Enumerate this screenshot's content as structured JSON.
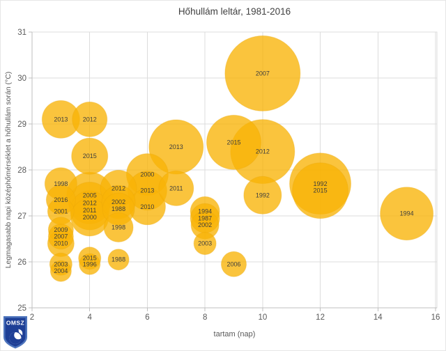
{
  "title": "Hőhullám leltár, 1981-2016",
  "logo": {
    "text": "OMSZ"
  },
  "chart_data": {
    "type": "scatter",
    "subtype": "bubble",
    "title": "Hőhullám leltár, 1981-2016",
    "xlabel": "tartam (nap)",
    "ylabel": "Legmagasabb napi középhőmérséklet a hőhullám során (°C)",
    "xlim": [
      2,
      16
    ],
    "ylim": [
      25,
      31
    ],
    "xticks": [
      2,
      4,
      6,
      8,
      10,
      12,
      14,
      16
    ],
    "yticks": [
      25,
      26,
      27,
      28,
      29,
      30,
      31
    ],
    "grid": true,
    "legend": "none",
    "colors": {
      "bubble": "#F9B307",
      "bubble_opacity": 0.78,
      "bubble_stroke": "#E8A40A",
      "grid": "#DCDCDC",
      "axis": "#BFBFBF",
      "tick_text": "#595959",
      "point_label": "#3D3D3D",
      "title_text": "#404040"
    },
    "points": [
      {
        "label": "2013",
        "x": 3,
        "y": 29.1,
        "r": 27
      },
      {
        "label": "1998",
        "x": 3,
        "y": 27.7,
        "r": 23
      },
      {
        "label": "2016",
        "x": 3,
        "y": 27.35,
        "r": 21
      },
      {
        "label": "2001",
        "x": 3,
        "y": 27.1,
        "r": 19
      },
      {
        "label": "2009",
        "x": 3,
        "y": 26.7,
        "r": 18
      },
      {
        "label": "2007",
        "x": 3,
        "y": 26.55,
        "r": 18
      },
      {
        "label": "2010",
        "x": 3,
        "y": 26.4,
        "r": 19
      },
      {
        "label": "2003",
        "x": 3,
        "y": 25.95,
        "r": 16
      },
      {
        "label": "2004",
        "x": 3,
        "y": 25.8,
        "r": 15
      },
      {
        "label": "2012",
        "x": 4,
        "y": 29.1,
        "r": 25
      },
      {
        "label": "2015",
        "x": 4,
        "y": 28.3,
        "r": 26
      },
      {
        "label": "2005",
        "x": 4,
        "y": 27.45,
        "r": 33
      },
      {
        "label": "2012",
        "x": 4,
        "y": 27.28,
        "r": 30
      },
      {
        "label": "2011",
        "x": 4,
        "y": 27.12,
        "r": 28
      },
      {
        "label": "2000",
        "x": 4,
        "y": 26.97,
        "r": 27
      },
      {
        "label": "2015",
        "x": 4,
        "y": 26.08,
        "r": 16
      },
      {
        "label": "1996",
        "x": 4,
        "y": 25.95,
        "r": 15
      },
      {
        "label": "2012",
        "x": 5,
        "y": 27.6,
        "r": 26
      },
      {
        "label": "2002",
        "x": 5,
        "y": 27.3,
        "r": 24
      },
      {
        "label": "1988",
        "x": 5,
        "y": 27.15,
        "r": 23
      },
      {
        "label": "1998",
        "x": 5,
        "y": 26.75,
        "r": 21
      },
      {
        "label": "1988",
        "x": 5,
        "y": 26.05,
        "r": 15
      },
      {
        "label": "2000",
        "x": 6,
        "y": 27.9,
        "r": 30
      },
      {
        "label": "2013",
        "x": 6,
        "y": 27.55,
        "r": 28
      },
      {
        "label": "2010",
        "x": 6,
        "y": 27.2,
        "r": 26
      },
      {
        "label": "2013",
        "x": 7,
        "y": 28.5,
        "r": 39
      },
      {
        "label": "2011",
        "x": 7,
        "y": 27.6,
        "r": 25
      },
      {
        "label": "1994",
        "x": 8,
        "y": 27.1,
        "r": 21
      },
      {
        "label": "1987",
        "x": 8,
        "y": 26.95,
        "r": 21
      },
      {
        "label": "2002",
        "x": 8,
        "y": 26.8,
        "r": 20
      },
      {
        "label": "2003",
        "x": 8,
        "y": 26.4,
        "r": 16
      },
      {
        "label": "2015",
        "x": 9,
        "y": 28.6,
        "r": 39
      },
      {
        "label": "2006",
        "x": 9,
        "y": 25.95,
        "r": 18
      },
      {
        "label": "2007",
        "x": 10,
        "y": 30.1,
        "r": 54
      },
      {
        "label": "2012",
        "x": 10,
        "y": 28.4,
        "r": 46
      },
      {
        "label": "1992",
        "x": 10,
        "y": 27.45,
        "r": 27
      },
      {
        "label": "1992",
        "x": 12,
        "y": 27.7,
        "r": 44
      },
      {
        "label": "2015",
        "x": 12,
        "y": 27.55,
        "r": 40
      },
      {
        "label": "1994",
        "x": 15,
        "y": 27.05,
        "r": 38
      }
    ]
  }
}
